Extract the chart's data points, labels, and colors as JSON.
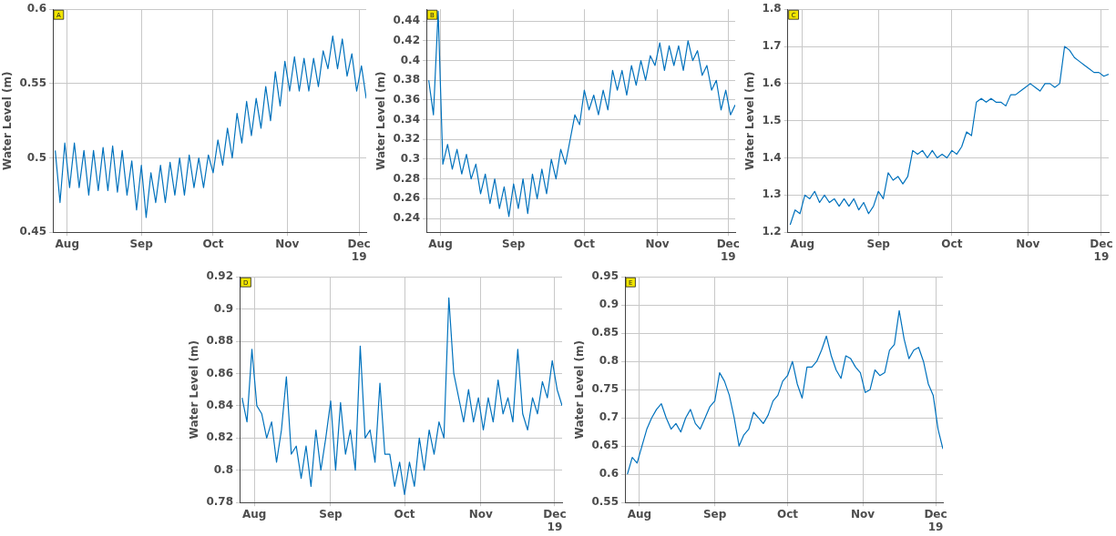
{
  "chart_data": [
    {
      "type": "line",
      "title": "A",
      "ylabel": "Water Level (m)",
      "color": "#0072bd",
      "marker": "none",
      "line_style": "solid",
      "grid": true,
      "legend": false,
      "x": [
        "2019-07-27",
        "2019-07-29",
        "2019-07-31",
        "2019-08-02",
        "2019-08-04",
        "2019-08-06",
        "2019-08-08",
        "2019-08-10",
        "2019-08-12",
        "2019-08-14",
        "2019-08-16",
        "2019-08-18",
        "2019-08-20",
        "2019-08-22",
        "2019-08-24",
        "2019-08-26",
        "2019-08-28",
        "2019-08-30",
        "2019-09-01",
        "2019-09-03",
        "2019-09-05",
        "2019-09-07",
        "2019-09-09",
        "2019-09-11",
        "2019-09-13",
        "2019-09-15",
        "2019-09-17",
        "2019-09-19",
        "2019-09-21",
        "2019-09-23",
        "2019-09-25",
        "2019-09-27",
        "2019-09-29",
        "2019-10-01",
        "2019-10-03",
        "2019-10-05",
        "2019-10-07",
        "2019-10-09",
        "2019-10-11",
        "2019-10-13",
        "2019-10-15",
        "2019-10-17",
        "2019-10-19",
        "2019-10-21",
        "2019-10-23",
        "2019-10-25",
        "2019-10-27",
        "2019-10-29",
        "2019-10-31",
        "2019-11-02",
        "2019-11-04",
        "2019-11-06",
        "2019-11-08",
        "2019-11-10",
        "2019-11-12",
        "2019-11-14",
        "2019-11-16",
        "2019-11-18",
        "2019-11-20",
        "2019-11-22",
        "2019-11-24",
        "2019-11-26",
        "2019-11-28",
        "2019-11-30",
        "2019-12-02",
        "2019-12-04"
      ],
      "values": [
        0.505,
        0.47,
        0.51,
        0.48,
        0.51,
        0.48,
        0.505,
        0.475,
        0.505,
        0.478,
        0.507,
        0.478,
        0.508,
        0.477,
        0.505,
        0.475,
        0.498,
        0.465,
        0.495,
        0.46,
        0.49,
        0.47,
        0.495,
        0.47,
        0.497,
        0.475,
        0.5,
        0.475,
        0.502,
        0.48,
        0.5,
        0.48,
        0.502,
        0.49,
        0.512,
        0.495,
        0.52,
        0.5,
        0.53,
        0.51,
        0.538,
        0.515,
        0.54,
        0.52,
        0.548,
        0.525,
        0.558,
        0.535,
        0.565,
        0.545,
        0.568,
        0.545,
        0.567,
        0.545,
        0.567,
        0.548,
        0.572,
        0.56,
        0.582,
        0.56,
        0.58,
        0.555,
        0.57,
        0.545,
        0.562,
        0.54
      ],
      "xlim": [
        "2019-07-26",
        "2019-12-04"
      ],
      "xticks": [
        {
          "value": "2019-08-01",
          "label": "Aug"
        },
        {
          "value": "2019-09-01",
          "label": "Sep"
        },
        {
          "value": "2019-10-01",
          "label": "Oct"
        },
        {
          "value": "2019-11-01",
          "label": "Nov"
        },
        {
          "value": "2019-12-01",
          "label": "Dec\n19"
        }
      ],
      "ylim": [
        0.45,
        0.6
      ],
      "yticks": [
        0.45,
        0.5,
        0.55,
        0.6
      ]
    },
    {
      "type": "line",
      "title": "B",
      "ylabel": "Water Level (m)",
      "color": "#0072bd",
      "marker": "none",
      "line_style": "solid",
      "grid": true,
      "legend": false,
      "x": [
        "2019-07-27",
        "2019-07-29",
        "2019-07-31",
        "2019-08-02",
        "2019-08-04",
        "2019-08-06",
        "2019-08-08",
        "2019-08-10",
        "2019-08-12",
        "2019-08-14",
        "2019-08-16",
        "2019-08-18",
        "2019-08-20",
        "2019-08-22",
        "2019-08-24",
        "2019-08-26",
        "2019-08-28",
        "2019-08-30",
        "2019-09-01",
        "2019-09-03",
        "2019-09-05",
        "2019-09-07",
        "2019-09-09",
        "2019-09-11",
        "2019-09-13",
        "2019-09-15",
        "2019-09-17",
        "2019-09-19",
        "2019-09-21",
        "2019-09-23",
        "2019-09-25",
        "2019-09-27",
        "2019-09-29",
        "2019-10-01",
        "2019-10-03",
        "2019-10-05",
        "2019-10-07",
        "2019-10-09",
        "2019-10-11",
        "2019-10-13",
        "2019-10-15",
        "2019-10-17",
        "2019-10-19",
        "2019-10-21",
        "2019-10-23",
        "2019-10-25",
        "2019-10-27",
        "2019-10-29",
        "2019-10-31",
        "2019-11-02",
        "2019-11-04",
        "2019-11-06",
        "2019-11-08",
        "2019-11-10",
        "2019-11-12",
        "2019-11-14",
        "2019-11-16",
        "2019-11-18",
        "2019-11-20",
        "2019-11-22",
        "2019-11-24",
        "2019-11-26",
        "2019-11-28",
        "2019-11-30",
        "2019-12-02",
        "2019-12-04"
      ],
      "values": [
        0.38,
        0.345,
        0.45,
        0.295,
        0.315,
        0.29,
        0.31,
        0.285,
        0.305,
        0.28,
        0.295,
        0.265,
        0.285,
        0.255,
        0.28,
        0.25,
        0.272,
        0.242,
        0.275,
        0.25,
        0.28,
        0.245,
        0.285,
        0.26,
        0.29,
        0.265,
        0.3,
        0.28,
        0.31,
        0.295,
        0.32,
        0.345,
        0.335,
        0.37,
        0.35,
        0.365,
        0.345,
        0.37,
        0.35,
        0.39,
        0.37,
        0.39,
        0.365,
        0.395,
        0.375,
        0.4,
        0.38,
        0.405,
        0.395,
        0.418,
        0.39,
        0.415,
        0.395,
        0.415,
        0.39,
        0.42,
        0.4,
        0.41,
        0.385,
        0.395,
        0.37,
        0.38,
        0.35,
        0.37,
        0.345,
        0.355
      ],
      "xlim": [
        "2019-07-26",
        "2019-12-04"
      ],
      "xticks": [
        {
          "value": "2019-08-01",
          "label": "Aug"
        },
        {
          "value": "2019-09-01",
          "label": "Sep"
        },
        {
          "value": "2019-10-01",
          "label": "Oct"
        },
        {
          "value": "2019-11-01",
          "label": "Nov"
        },
        {
          "value": "2019-12-01",
          "label": "Dec\n19"
        }
      ],
      "ylim": [
        0.226,
        0.452
      ],
      "yticks": [
        0.24,
        0.26,
        0.28,
        0.3,
        0.32,
        0.34,
        0.36,
        0.38,
        0.4,
        0.42,
        0.44
      ]
    },
    {
      "type": "line",
      "title": "C",
      "ylabel": "Water Level (m)",
      "color": "#0072bd",
      "marker": "none",
      "line_style": "solid",
      "grid": true,
      "legend": false,
      "x": [
        "2019-07-27",
        "2019-07-29",
        "2019-07-31",
        "2019-08-02",
        "2019-08-04",
        "2019-08-06",
        "2019-08-08",
        "2019-08-10",
        "2019-08-12",
        "2019-08-14",
        "2019-08-16",
        "2019-08-18",
        "2019-08-20",
        "2019-08-22",
        "2019-08-24",
        "2019-08-26",
        "2019-08-28",
        "2019-08-30",
        "2019-09-01",
        "2019-09-03",
        "2019-09-05",
        "2019-09-07",
        "2019-09-09",
        "2019-09-11",
        "2019-09-13",
        "2019-09-15",
        "2019-09-17",
        "2019-09-19",
        "2019-09-21",
        "2019-09-23",
        "2019-09-25",
        "2019-09-27",
        "2019-09-29",
        "2019-10-01",
        "2019-10-03",
        "2019-10-05",
        "2019-10-07",
        "2019-10-09",
        "2019-10-11",
        "2019-10-13",
        "2019-10-15",
        "2019-10-17",
        "2019-10-19",
        "2019-10-21",
        "2019-10-23",
        "2019-10-25",
        "2019-10-27",
        "2019-10-29",
        "2019-10-31",
        "2019-11-02",
        "2019-11-04",
        "2019-11-06",
        "2019-11-08",
        "2019-11-10",
        "2019-11-12",
        "2019-11-14",
        "2019-11-16",
        "2019-11-18",
        "2019-11-20",
        "2019-11-22",
        "2019-11-24",
        "2019-11-26",
        "2019-11-28",
        "2019-11-30",
        "2019-12-02",
        "2019-12-04"
      ],
      "values": [
        1.22,
        1.26,
        1.25,
        1.3,
        1.29,
        1.31,
        1.28,
        1.3,
        1.28,
        1.29,
        1.27,
        1.29,
        1.27,
        1.29,
        1.26,
        1.28,
        1.25,
        1.27,
        1.31,
        1.29,
        1.36,
        1.34,
        1.35,
        1.33,
        1.35,
        1.42,
        1.41,
        1.42,
        1.4,
        1.42,
        1.4,
        1.41,
        1.4,
        1.42,
        1.41,
        1.43,
        1.47,
        1.46,
        1.55,
        1.56,
        1.55,
        1.56,
        1.55,
        1.55,
        1.54,
        1.57,
        1.57,
        1.58,
        1.59,
        1.6,
        1.59,
        1.58,
        1.6,
        1.6,
        1.59,
        1.6,
        1.7,
        1.69,
        1.67,
        1.66,
        1.65,
        1.64,
        1.63,
        1.63,
        1.62,
        1.625
      ],
      "xlim": [
        "2019-07-26",
        "2019-12-04"
      ],
      "xticks": [
        {
          "value": "2019-08-01",
          "label": "Aug"
        },
        {
          "value": "2019-09-01",
          "label": "Sep"
        },
        {
          "value": "2019-10-01",
          "label": "Oct"
        },
        {
          "value": "2019-11-01",
          "label": "Nov"
        },
        {
          "value": "2019-12-01",
          "label": "Dec\n19"
        }
      ],
      "ylim": [
        1.2,
        1.8
      ],
      "yticks": [
        1.2,
        1.3,
        1.4,
        1.5,
        1.6,
        1.7,
        1.8
      ]
    },
    {
      "type": "line",
      "title": "D",
      "ylabel": "Water Level (m)",
      "color": "#0072bd",
      "marker": "none",
      "line_style": "solid",
      "grid": true,
      "legend": false,
      "x": [
        "2019-07-27",
        "2019-07-29",
        "2019-07-31",
        "2019-08-02",
        "2019-08-04",
        "2019-08-06",
        "2019-08-08",
        "2019-08-10",
        "2019-08-12",
        "2019-08-14",
        "2019-08-16",
        "2019-08-18",
        "2019-08-20",
        "2019-08-22",
        "2019-08-24",
        "2019-08-26",
        "2019-08-28",
        "2019-08-30",
        "2019-09-01",
        "2019-09-03",
        "2019-09-05",
        "2019-09-07",
        "2019-09-09",
        "2019-09-11",
        "2019-09-13",
        "2019-09-15",
        "2019-09-17",
        "2019-09-19",
        "2019-09-21",
        "2019-09-23",
        "2019-09-25",
        "2019-09-27",
        "2019-09-29",
        "2019-10-01",
        "2019-10-03",
        "2019-10-05",
        "2019-10-07",
        "2019-10-09",
        "2019-10-11",
        "2019-10-13",
        "2019-10-15",
        "2019-10-17",
        "2019-10-19",
        "2019-10-21",
        "2019-10-23",
        "2019-10-25",
        "2019-10-27",
        "2019-10-29",
        "2019-10-31",
        "2019-11-02",
        "2019-11-04",
        "2019-11-06",
        "2019-11-08",
        "2019-11-10",
        "2019-11-12",
        "2019-11-14",
        "2019-11-16",
        "2019-11-18",
        "2019-11-20",
        "2019-11-22",
        "2019-11-24",
        "2019-11-26",
        "2019-11-28",
        "2019-11-30",
        "2019-12-02",
        "2019-12-04"
      ],
      "values": [
        0.845,
        0.83,
        0.875,
        0.84,
        0.835,
        0.82,
        0.83,
        0.805,
        0.825,
        0.858,
        0.81,
        0.815,
        0.795,
        0.815,
        0.79,
        0.825,
        0.8,
        0.82,
        0.843,
        0.8,
        0.842,
        0.81,
        0.825,
        0.8,
        0.877,
        0.82,
        0.825,
        0.805,
        0.854,
        0.81,
        0.81,
        0.79,
        0.805,
        0.785,
        0.805,
        0.79,
        0.82,
        0.8,
        0.825,
        0.81,
        0.83,
        0.82,
        0.907,
        0.86,
        0.845,
        0.83,
        0.85,
        0.83,
        0.845,
        0.825,
        0.845,
        0.83,
        0.856,
        0.835,
        0.845,
        0.83,
        0.875,
        0.835,
        0.825,
        0.845,
        0.835,
        0.855,
        0.845,
        0.868,
        0.85,
        0.84
      ],
      "xlim": [
        "2019-07-26",
        "2019-12-04"
      ],
      "xticks": [
        {
          "value": "2019-08-01",
          "label": "Aug"
        },
        {
          "value": "2019-09-01",
          "label": "Sep"
        },
        {
          "value": "2019-10-01",
          "label": "Oct"
        },
        {
          "value": "2019-11-01",
          "label": "Nov"
        },
        {
          "value": "2019-12-01",
          "label": "Dec\n19"
        }
      ],
      "ylim": [
        0.78,
        0.92
      ],
      "yticks": [
        0.78,
        0.8,
        0.82,
        0.84,
        0.86,
        0.88,
        0.9,
        0.92
      ]
    },
    {
      "type": "line",
      "title": "E",
      "ylabel": "Water Level (m)",
      "color": "#0072bd",
      "marker": "none",
      "line_style": "solid",
      "grid": true,
      "legend": false,
      "x": [
        "2019-07-27",
        "2019-07-29",
        "2019-07-31",
        "2019-08-02",
        "2019-08-04",
        "2019-08-06",
        "2019-08-08",
        "2019-08-10",
        "2019-08-12",
        "2019-08-14",
        "2019-08-16",
        "2019-08-18",
        "2019-08-20",
        "2019-08-22",
        "2019-08-24",
        "2019-08-26",
        "2019-08-28",
        "2019-08-30",
        "2019-09-01",
        "2019-09-03",
        "2019-09-05",
        "2019-09-07",
        "2019-09-09",
        "2019-09-11",
        "2019-09-13",
        "2019-09-15",
        "2019-09-17",
        "2019-09-19",
        "2019-09-21",
        "2019-09-23",
        "2019-09-25",
        "2019-09-27",
        "2019-09-29",
        "2019-10-01",
        "2019-10-03",
        "2019-10-05",
        "2019-10-07",
        "2019-10-09",
        "2019-10-11",
        "2019-10-13",
        "2019-10-15",
        "2019-10-17",
        "2019-10-19",
        "2019-10-21",
        "2019-10-23",
        "2019-10-25",
        "2019-10-27",
        "2019-10-29",
        "2019-10-31",
        "2019-11-02",
        "2019-11-04",
        "2019-11-06",
        "2019-11-08",
        "2019-11-10",
        "2019-11-12",
        "2019-11-14",
        "2019-11-16",
        "2019-11-18",
        "2019-11-20",
        "2019-11-22",
        "2019-11-24",
        "2019-11-26",
        "2019-11-28",
        "2019-11-30",
        "2019-12-02",
        "2019-12-04"
      ],
      "values": [
        0.6,
        0.63,
        0.62,
        0.65,
        0.68,
        0.7,
        0.715,
        0.725,
        0.7,
        0.68,
        0.69,
        0.675,
        0.7,
        0.715,
        0.69,
        0.68,
        0.7,
        0.72,
        0.73,
        0.78,
        0.765,
        0.74,
        0.7,
        0.65,
        0.67,
        0.68,
        0.71,
        0.7,
        0.69,
        0.705,
        0.73,
        0.74,
        0.765,
        0.775,
        0.8,
        0.76,
        0.735,
        0.79,
        0.79,
        0.8,
        0.82,
        0.845,
        0.81,
        0.785,
        0.77,
        0.81,
        0.805,
        0.79,
        0.78,
        0.745,
        0.75,
        0.785,
        0.775,
        0.78,
        0.82,
        0.83,
        0.89,
        0.84,
        0.805,
        0.82,
        0.825,
        0.8,
        0.76,
        0.74,
        0.68,
        0.645
      ],
      "xlim": [
        "2019-07-26",
        "2019-12-04"
      ],
      "xticks": [
        {
          "value": "2019-08-01",
          "label": "Aug"
        },
        {
          "value": "2019-09-01",
          "label": "Sep"
        },
        {
          "value": "2019-10-01",
          "label": "Oct"
        },
        {
          "value": "2019-11-01",
          "label": "Nov"
        },
        {
          "value": "2019-12-01",
          "label": "Dec\n19"
        }
      ],
      "ylim": [
        0.55,
        0.95
      ],
      "yticks": [
        0.55,
        0.6,
        0.65,
        0.7,
        0.75,
        0.8,
        0.85,
        0.9,
        0.95
      ]
    }
  ]
}
